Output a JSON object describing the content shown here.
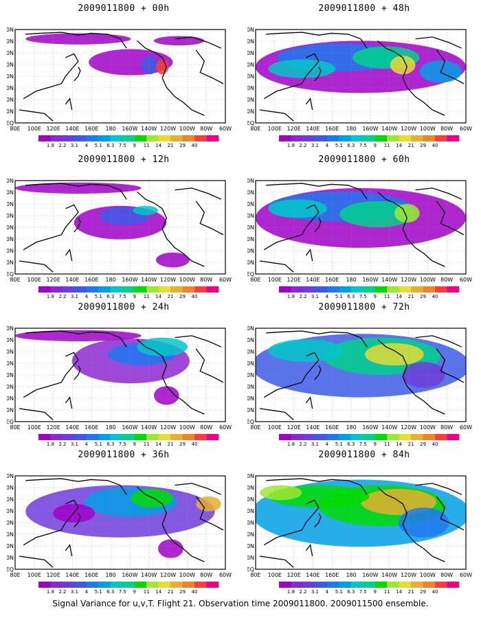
{
  "panels": [
    {
      "title": "2009011800 + 00h",
      "lead_hours": 0
    },
    {
      "title": "2009011800 + 48h",
      "lead_hours": 48
    },
    {
      "title": "2009011800 + 12h",
      "lead_hours": 12
    },
    {
      "title": "2009011800 + 60h",
      "lead_hours": 60
    },
    {
      "title": "2009011800 + 24h",
      "lead_hours": 24
    },
    {
      "title": "2009011800 + 72h",
      "lead_hours": 72
    },
    {
      "title": "2009011800 + 36h",
      "lead_hours": 36
    },
    {
      "title": "2009011800 + 84h",
      "lead_hours": 84
    }
  ],
  "lon_ticks": [
    "80E",
    "100E",
    "120E",
    "140E",
    "160E",
    "180",
    "160W",
    "140W",
    "120W",
    "100W",
    "80W",
    "60W"
  ],
  "lat_ticks": [
    "EQ",
    "10N",
    "20N",
    "30N",
    "40N",
    "50N",
    "60N",
    "70N",
    "80N"
  ],
  "colorbar": {
    "labels": [
      "1.8",
      "2.2",
      "3.1",
      "4",
      "5.1",
      "6.3",
      "7.5",
      "9",
      "11",
      "14",
      "21",
      "29",
      "40"
    ],
    "colors": [
      "#a000c8",
      "#8c28d2",
      "#6e3cdc",
      "#3c5ae6",
      "#1e78f0",
      "#00a0e6",
      "#00c8c8",
      "#00d28c",
      "#00dc00",
      "#a0e632",
      "#e6dc32",
      "#e6af2d",
      "#f08228",
      "#fa3c3c",
      "#f00082"
    ]
  },
  "footer": "Signal Variance for u,v,T. Flight 21. Observation time 2009011800. 2009011500 ensemble."
}
